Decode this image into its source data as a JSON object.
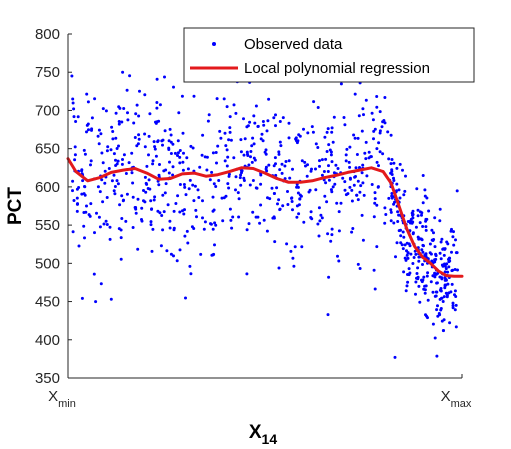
{
  "chart_data": {
    "type": "scatter",
    "xlabel": "X",
    "xlabel_sub": "14",
    "ylabel": "PCT",
    "ylim": [
      350,
      800
    ],
    "yticks": [
      350,
      400,
      450,
      500,
      550,
      600,
      650,
      700,
      750,
      800
    ],
    "xlim": [
      0,
      1
    ],
    "xticks": [
      {
        "value": 0,
        "main": "X",
        "sub": "min"
      },
      {
        "value": 1,
        "main": "X",
        "sub": "max"
      }
    ],
    "legend": {
      "position": "top-right",
      "entries": [
        {
          "label": "Observed data",
          "marker": "dot",
          "color": "#0000ff"
        },
        {
          "label": "Local polynomial regression",
          "marker": "line",
          "color": "#e31a1c"
        }
      ]
    },
    "series": [
      {
        "name": "Observed data",
        "kind": "scatter",
        "color": "#0000ff",
        "generator": {
          "count": 1000,
          "x_range": [
            0.01,
            0.99
          ],
          "noise_sd_left": 55,
          "noise_sd_right": 40,
          "transition_x": 0.82
        }
      },
      {
        "name": "Local polynomial regression",
        "kind": "line",
        "color": "#e31a1c",
        "points": [
          [
            0.0,
            637
          ],
          [
            0.02,
            620
          ],
          [
            0.05,
            608
          ],
          [
            0.08,
            612
          ],
          [
            0.11,
            619
          ],
          [
            0.14,
            622
          ],
          [
            0.17,
            624
          ],
          [
            0.2,
            618
          ],
          [
            0.23,
            610
          ],
          [
            0.26,
            611
          ],
          [
            0.29,
            617
          ],
          [
            0.32,
            618
          ],
          [
            0.35,
            614
          ],
          [
            0.38,
            616
          ],
          [
            0.41,
            620
          ],
          [
            0.44,
            625
          ],
          [
            0.47,
            624
          ],
          [
            0.5,
            618
          ],
          [
            0.53,
            611
          ],
          [
            0.56,
            606
          ],
          [
            0.59,
            606
          ],
          [
            0.62,
            608
          ],
          [
            0.65,
            612
          ],
          [
            0.68,
            615
          ],
          [
            0.71,
            619
          ],
          [
            0.74,
            622
          ],
          [
            0.77,
            625
          ],
          [
            0.8,
            620
          ],
          [
            0.82,
            605
          ],
          [
            0.84,
            575
          ],
          [
            0.86,
            545
          ],
          [
            0.88,
            522
          ],
          [
            0.9,
            508
          ],
          [
            0.92,
            500
          ],
          [
            0.94,
            490
          ],
          [
            0.96,
            484
          ],
          [
            0.98,
            483
          ],
          [
            1.0,
            483
          ]
        ]
      }
    ]
  }
}
